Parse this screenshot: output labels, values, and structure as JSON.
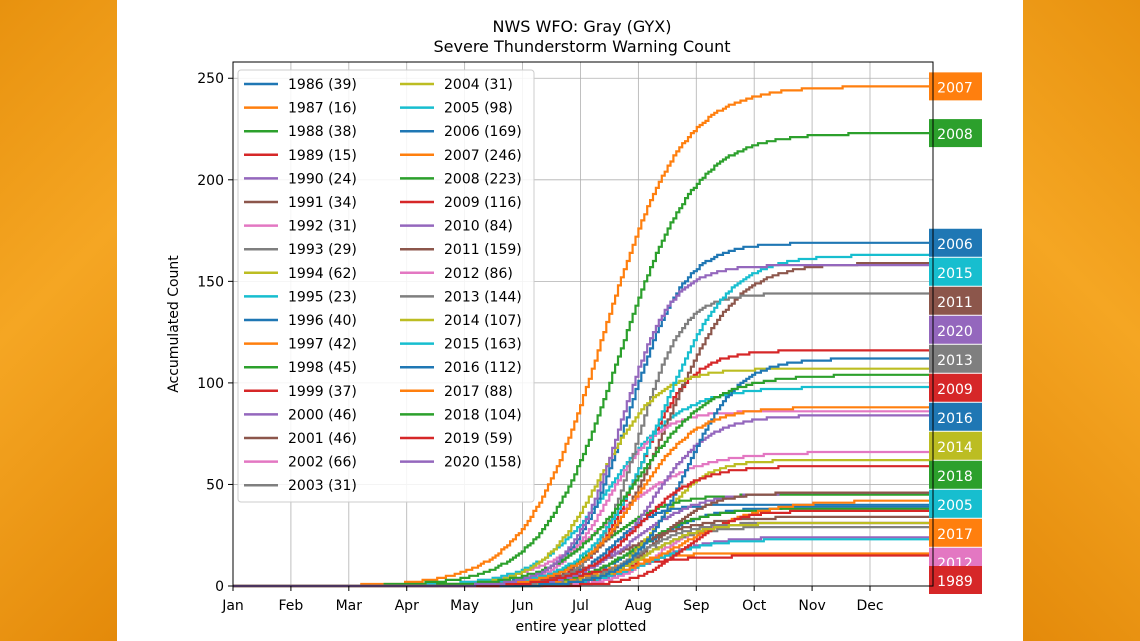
{
  "chart_data": {
    "type": "line",
    "title": "NWS WFO: Gray (GYX)",
    "subtitle": "Severe Thunderstorm Warning Count",
    "xlabel": "entire year plotted",
    "ylabel": "Accumulated Count",
    "x_ticks": [
      "Jan",
      "Feb",
      "Mar",
      "Apr",
      "May",
      "Jun",
      "Jul",
      "Aug",
      "Sep",
      "Oct",
      "Nov",
      "Dec"
    ],
    "y_ticks": [
      0,
      50,
      100,
      150,
      200,
      250
    ],
    "ylim": [
      0,
      258
    ],
    "grid": true,
    "legend_placement": "upper-left",
    "series": [
      {
        "name": "1986 (39)",
        "year": "1986",
        "total": 39,
        "color": "#1f77b4"
      },
      {
        "name": "1987 (16)",
        "year": "1987",
        "total": 16,
        "color": "#ff7f0e"
      },
      {
        "name": "1988 (38)",
        "year": "1988",
        "total": 38,
        "color": "#2ca02c"
      },
      {
        "name": "1989 (15)",
        "year": "1989",
        "total": 15,
        "color": "#d62728"
      },
      {
        "name": "1990 (24)",
        "year": "1990",
        "total": 24,
        "color": "#9467bd"
      },
      {
        "name": "1991 (34)",
        "year": "1991",
        "total": 34,
        "color": "#8c564b"
      },
      {
        "name": "1992 (31)",
        "year": "1992",
        "total": 31,
        "color": "#e377c2"
      },
      {
        "name": "1993 (29)",
        "year": "1993",
        "total": 29,
        "color": "#7f7f7f"
      },
      {
        "name": "1994 (62)",
        "year": "1994",
        "total": 62,
        "color": "#bcbd22"
      },
      {
        "name": "1995 (23)",
        "year": "1995",
        "total": 23,
        "color": "#17becf"
      },
      {
        "name": "1996 (40)",
        "year": "1996",
        "total": 40,
        "color": "#1f77b4"
      },
      {
        "name": "1997 (42)",
        "year": "1997",
        "total": 42,
        "color": "#ff7f0e"
      },
      {
        "name": "1998 (45)",
        "year": "1998",
        "total": 45,
        "color": "#2ca02c"
      },
      {
        "name": "1999 (37)",
        "year": "1999",
        "total": 37,
        "color": "#d62728"
      },
      {
        "name": "2000 (46)",
        "year": "2000",
        "total": 46,
        "color": "#9467bd"
      },
      {
        "name": "2001 (46)",
        "year": "2001",
        "total": 46,
        "color": "#8c564b"
      },
      {
        "name": "2002 (66)",
        "year": "2002",
        "total": 66,
        "color": "#e377c2"
      },
      {
        "name": "2003 (31)",
        "year": "2003",
        "total": 31,
        "color": "#7f7f7f"
      },
      {
        "name": "2004 (31)",
        "year": "2004",
        "total": 31,
        "color": "#bcbd22"
      },
      {
        "name": "2005 (98)",
        "year": "2005",
        "total": 98,
        "color": "#17becf"
      },
      {
        "name": "2006 (169)",
        "year": "2006",
        "total": 169,
        "color": "#1f77b4"
      },
      {
        "name": "2007 (246)",
        "year": "2007",
        "total": 246,
        "color": "#ff7f0e"
      },
      {
        "name": "2008 (223)",
        "year": "2008",
        "total": 223,
        "color": "#2ca02c"
      },
      {
        "name": "2009 (116)",
        "year": "2009",
        "total": 116,
        "color": "#d62728"
      },
      {
        "name": "2010 (84)",
        "year": "2010",
        "total": 84,
        "color": "#9467bd"
      },
      {
        "name": "2011 (159)",
        "year": "2011",
        "total": 159,
        "color": "#8c564b"
      },
      {
        "name": "2012 (86)",
        "year": "2012",
        "total": 86,
        "color": "#e377c2"
      },
      {
        "name": "2013 (144)",
        "year": "2013",
        "total": 144,
        "color": "#7f7f7f"
      },
      {
        "name": "2014 (107)",
        "year": "2014",
        "total": 107,
        "color": "#bcbd22"
      },
      {
        "name": "2015 (163)",
        "year": "2015",
        "total": 163,
        "color": "#17becf"
      },
      {
        "name": "2016 (112)",
        "year": "2016",
        "total": 112,
        "color": "#1f77b4"
      },
      {
        "name": "2017 (88)",
        "year": "2017",
        "total": 88,
        "color": "#ff7f0e"
      },
      {
        "name": "2018 (104)",
        "year": "2018",
        "total": 104,
        "color": "#2ca02c"
      },
      {
        "name": "2019 (59)",
        "year": "2019",
        "total": 59,
        "color": "#d62728"
      },
      {
        "name": "2020 (158)",
        "year": "2020",
        "total": 158,
        "color": "#9467bd"
      }
    ]
  }
}
